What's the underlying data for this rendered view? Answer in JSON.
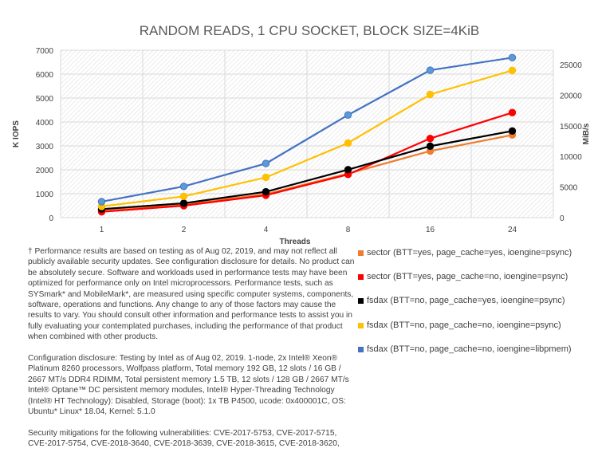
{
  "chart_data": {
    "type": "line",
    "title": "RANDOM READS, 1 CPU SOCKET, BLOCK SIZE=4KiB",
    "xlabel": "Threads",
    "ylabel": "K IOPS",
    "y2label": "MiB/s",
    "categories": [
      "1",
      "2",
      "4",
      "8",
      "16",
      "24"
    ],
    "ylim": [
      0,
      7000
    ],
    "yticks": [
      "0",
      "1000",
      "2000",
      "3000",
      "4000",
      "5000",
      "6000",
      "7000"
    ],
    "y2lim": [
      0,
      27344
    ],
    "y2ticks": [
      "0",
      "5000",
      "10000",
      "15000",
      "20000",
      "25000"
    ],
    "grid": true,
    "legend_position": "bottom-right",
    "series": [
      {
        "name": "sector (BTT=yes, page_cache=yes, ioengine=psync)",
        "color": "#ED7D31",
        "values": [
          330,
          557,
          981,
          1840,
          2787,
          3456
        ]
      },
      {
        "name": "sector (BTT=yes, page_cache=no, ioengine=psync)",
        "color": "#FF0000",
        "values": [
          245,
          500,
          936,
          1806,
          3311,
          4392
        ]
      },
      {
        "name": "fsdax (BTT=no, page_cache=yes, ioengine=psync)",
        "color": "#000000",
        "values": [
          357,
          602,
          1081,
          2007,
          2988,
          3623
        ]
      },
      {
        "name": "fsdax (BTT=no, page_cache=no, ioengine=psync)",
        "color": "#FFC000",
        "values": [
          470,
          890,
          1683,
          3121,
          5150,
          6154
        ]
      },
      {
        "name": "fsdax (BTT=no, page_cache=no, ioengine=libpmem)",
        "color": "#4472C4",
        "values": [
          670,
          1305,
          2263,
          4292,
          6165,
          6689
        ]
      }
    ]
  },
  "notes": [
    "† Performance results are based on testing as of Aug 02, 2019, and may not reflect all publicly available security updates. See configuration disclosure for details. No product can be absolutely secure. Software and workloads used in performance tests may have been optimized for performance only on Intel microprocessors. Performance tests, such as SYSmark* and MobileMark*, are measured using specific computer systems, components, software, operations and functions. Any change to any of those factors may cause the results to vary. You should consult other information and performance tests to assist you in fully evaluating your contemplated purchases, including the performance of that product when combined with other products.",
    "Configuration disclosure: Testing by Intel as of Aug 02, 2019. 1-node, 2x Intel® Xeon® Platinum 8260 processors, Wolfpass platform, Total memory 192 GB, 12 slots / 16 GB / 2667 MT/s DDR4 RDIMM, Total persistent memory 1.5 TB, 12 slots / 128 GB / 2667 MT/s Intel® Optane™ DC persistent memory modules, Intel® Hyper-Threading Technology (Intel® HT Technology): Disabled, Storage (boot): 1x TB P4500, ucode: 0x400001C, OS: Ubuntu* Linux* 18.04, Kernel: 5.1.0",
    "Security mitigations for the following vulnerabilities: CVE-2017-5753, CVE-2017-5715, CVE-2017-5754, CVE-2018-3640, CVE-2018-3639, CVE-2018-3615, CVE-2018-3620,"
  ]
}
